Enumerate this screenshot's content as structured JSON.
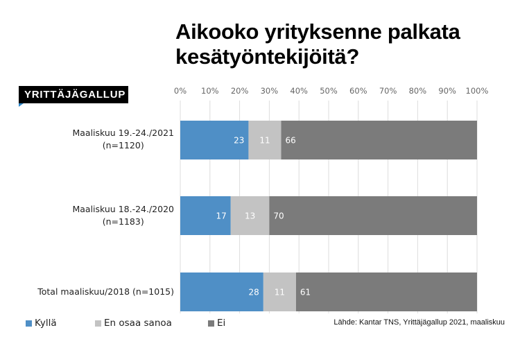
{
  "header": {
    "title_line1": "Aikooko yrityksenne palkata",
    "title_line2": "kesätyöntekijöitä?",
    "logo_text": "YRITTÄJÄGALLUP"
  },
  "source": "Lähde: Kantar TNS, Yrittäjägallup 2021, maaliskuu",
  "colors": {
    "series_1": "#4f8fc6",
    "series_2": "#c3c3c3",
    "series_3": "#7b7b7b",
    "logo_accent": "#2e86c8"
  },
  "chart_data": {
    "type": "bar",
    "orientation": "horizontal",
    "stacked": true,
    "xlim": [
      0,
      100
    ],
    "x_ticks": [
      "0%",
      "10%",
      "20%",
      "30%",
      "40%",
      "50%",
      "60%",
      "70%",
      "80%",
      "90%",
      "100%"
    ],
    "grid": true,
    "legend_position": "bottom",
    "categories": [
      {
        "line1": "Maaliskuu 19.-24./2021",
        "line2": "(n=1120)"
      },
      {
        "line1": "Maaliskuu 18.-24./2020",
        "line2": "(n=1183)"
      },
      {
        "line1": "Total maaliskuu/2018 (n=1015)",
        "line2": ""
      }
    ],
    "series": [
      {
        "name": "Kyllä",
        "values": [
          23,
          17,
          28
        ]
      },
      {
        "name": "En osaa sanoa",
        "values": [
          11,
          13,
          11
        ]
      },
      {
        "name": "Ei",
        "values": [
          66,
          70,
          61
        ]
      }
    ]
  }
}
